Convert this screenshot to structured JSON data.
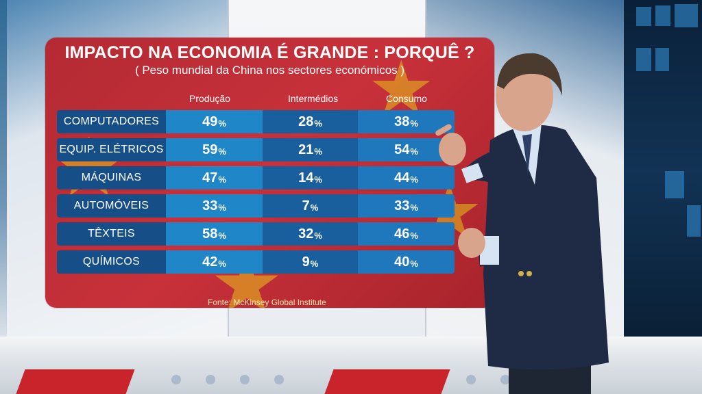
{
  "graphic": {
    "title": "IMPACTO NA ECONOMIA É GRANDE : PORQUÊ ?",
    "subtitle": "( Peso mundial da China nos sectores económicos )",
    "columns": [
      "Produção",
      "Intermédios",
      "Consumo"
    ],
    "rows": [
      {
        "label": "COMPUTADORES",
        "values": [
          "49",
          "28",
          "38"
        ]
      },
      {
        "label": "EQUIP. ELÉTRICOS",
        "values": [
          "59",
          "21",
          "54"
        ]
      },
      {
        "label": "MÁQUINAS",
        "values": [
          "47",
          "14",
          "44"
        ]
      },
      {
        "label": "AUTOMÓVEIS",
        "values": [
          "33",
          "7",
          "33"
        ]
      },
      {
        "label": "TÊXTEIS",
        "values": [
          "58",
          "32",
          "46"
        ]
      },
      {
        "label": "QUÍMICOS",
        "values": [
          "42",
          "9",
          "40"
        ]
      }
    ],
    "unit": "%",
    "source": "Fonte: McKinsey Global Institute"
  },
  "colors": {
    "board_red": "#c8313a",
    "row_blue": "#164f87",
    "cell_light_blue": "#1f86c7",
    "star_yellow": "#e8c21c"
  },
  "icons": [
    "star-icon"
  ]
}
